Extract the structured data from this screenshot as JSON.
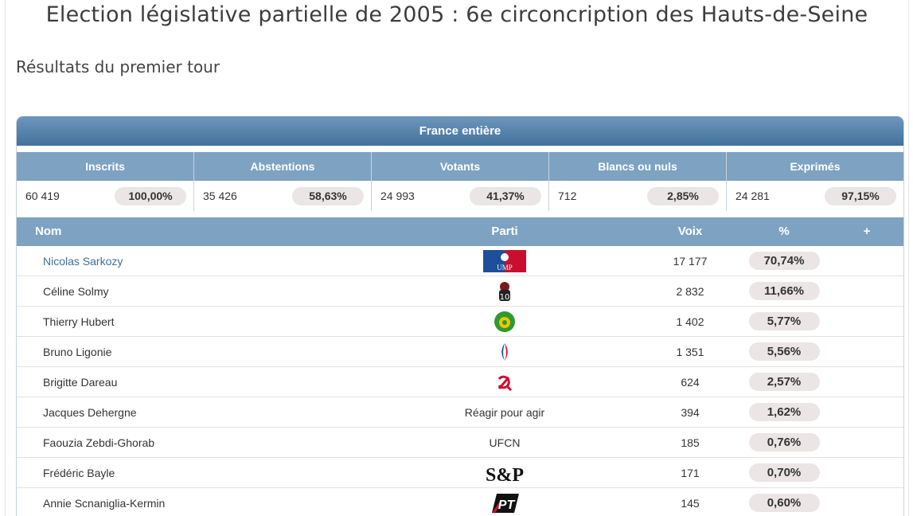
{
  "title": "Election législative partielle de 2005 : 6e circoncription des Hauts-de-Seine",
  "subtitle": "Résultats du premier tour",
  "band": "France entière",
  "summary": [
    {
      "label": "Inscrits",
      "value": "60 419",
      "pct": "100,00%"
    },
    {
      "label": "Abstentions",
      "value": "35 426",
      "pct": "58,63%"
    },
    {
      "label": "Votants",
      "value": "24 993",
      "pct": "41,37%"
    },
    {
      "label": "Blancs ou nuls",
      "value": "712",
      "pct": "2,85%"
    },
    {
      "label": "Exprimés",
      "value": "24 281",
      "pct": "97,15%"
    }
  ],
  "table": {
    "headers": {
      "nom": "Nom",
      "parti": "Parti",
      "voix": "Voix",
      "pct": "%",
      "plus": "+"
    },
    "rows": [
      {
        "nom": "Nicolas Sarkozy",
        "parti": "",
        "logo": "ump-logo",
        "voix": "17 177",
        "pct": "70,74%",
        "link": true
      },
      {
        "nom": "Céline Solmy",
        "parti": "",
        "logo": "ps-logo",
        "voix": "2 832",
        "pct": "11,66%"
      },
      {
        "nom": "Thierry Hubert",
        "parti": "",
        "logo": "verts-logo",
        "voix": "1 402",
        "pct": "5,77%"
      },
      {
        "nom": "Bruno Ligonie",
        "parti": "",
        "logo": "fn-logo",
        "voix": "1 351",
        "pct": "5,56%"
      },
      {
        "nom": "Brigitte Dareau",
        "parti": "",
        "logo": "pcf-logo",
        "voix": "624",
        "pct": "2,57%"
      },
      {
        "nom": "Jacques Dehergne",
        "parti": "Réagir pour agir",
        "logo": "",
        "voix": "394",
        "pct": "1,62%"
      },
      {
        "nom": "Faouzia Zebdi-Ghorab",
        "parti": "UFCN",
        "logo": "",
        "voix": "185",
        "pct": "0,76%"
      },
      {
        "nom": "Frédéric Bayle",
        "parti": "",
        "logo": "sp-logo",
        "voix": "171",
        "pct": "0,70%"
      },
      {
        "nom": "Annie Scnaniglia-Kermin",
        "parti": "",
        "logo": "pt-logo",
        "voix": "145",
        "pct": "0,60%"
      }
    ]
  },
  "logo_texts": {
    "ump": "UMP",
    "sp": "S&P",
    "pt": "PT"
  },
  "colors": {
    "header_dark": "#41719b",
    "header_light": "#7ea2c2",
    "link": "#3e6d9c",
    "pill": "#ebe5e5"
  }
}
